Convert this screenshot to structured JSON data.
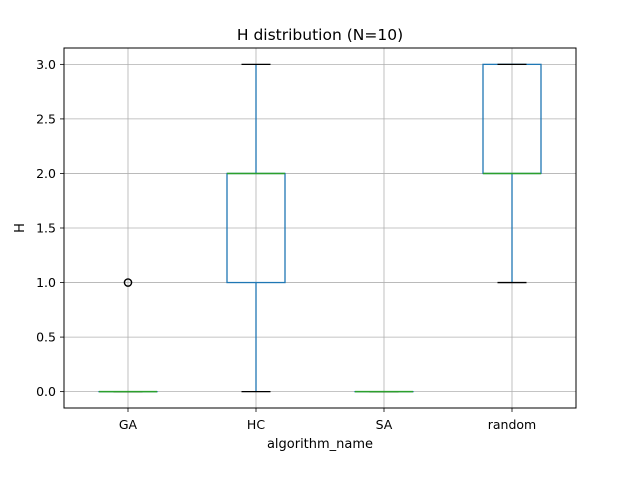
{
  "chart_data": {
    "type": "box",
    "title": "H distribution (N=10)",
    "xlabel": "algorithm_name",
    "ylabel": "H",
    "ylim": [
      -0.15,
      3.15
    ],
    "yticks": [
      0.0,
      0.5,
      1.0,
      1.5,
      2.0,
      2.5,
      3.0
    ],
    "ytick_labels": [
      "0.0",
      "0.5",
      "1.0",
      "1.5",
      "2.0",
      "2.5",
      "3.0"
    ],
    "grid": true,
    "categories": [
      "GA",
      "HC",
      "SA",
      "random"
    ],
    "boxes": [
      {
        "category": "GA",
        "whisker_low": 0,
        "q1": 0,
        "median": 0,
        "q3": 0,
        "whisker_high": 0,
        "outliers": [
          1
        ]
      },
      {
        "category": "HC",
        "whisker_low": 0,
        "q1": 1,
        "median": 2,
        "q3": 2,
        "whisker_high": 3,
        "outliers": []
      },
      {
        "category": "SA",
        "whisker_low": 0,
        "q1": 0,
        "median": 0,
        "q3": 0,
        "whisker_high": 0,
        "outliers": []
      },
      {
        "category": "random",
        "whisker_low": 1,
        "q1": 2,
        "median": 2,
        "q3": 3,
        "whisker_high": 3,
        "outliers": []
      }
    ],
    "colors": {
      "box": "#1f77b4",
      "median": "#2ca02c",
      "cap": "#000000",
      "grid": "#b0b0b0",
      "outlier": "#000000"
    }
  }
}
